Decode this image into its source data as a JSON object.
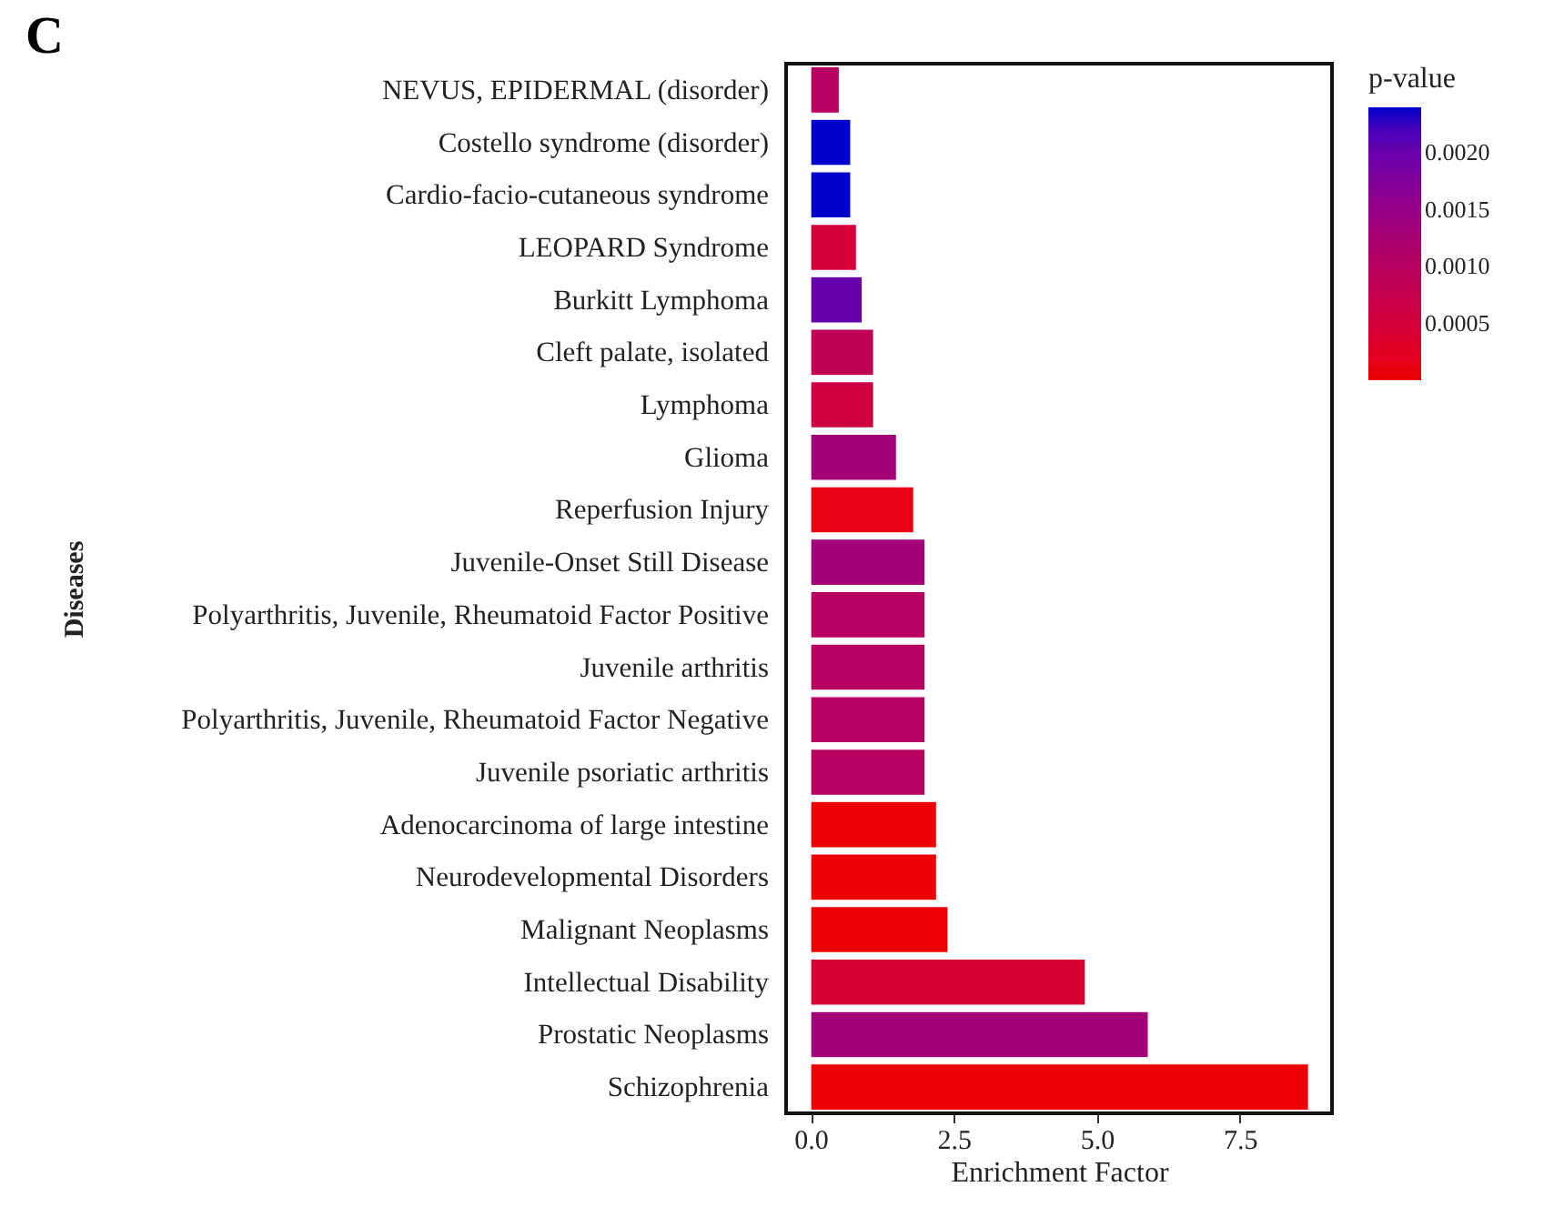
{
  "chart_data": {
    "type": "bar",
    "orientation": "horizontal",
    "xlabel": "Enrichment Factor",
    "ylabel": "Diseases",
    "legend_title": "p-value",
    "annotations": [
      "C"
    ],
    "categories": [
      "NEVUS, EPIDERMAL (disorder)",
      "Costello syndrome (disorder)",
      "Cardio-facio-cutaneous syndrome",
      "LEOPARD Syndrome",
      "Burkitt Lymphoma",
      "Cleft palate, isolated",
      "Lymphoma",
      "Glioma",
      "Reperfusion Injury",
      "Juvenile-Onset Still Disease",
      "Polyarthritis, Juvenile, Rheumatoid Factor Positive",
      "Juvenile arthritis",
      "Polyarthritis, Juvenile, Rheumatoid Factor Negative",
      "Juvenile psoriatic arthritis",
      "Adenocarcinoma of large intestine",
      "Neurodevelopmental Disorders",
      "Malignant Neoplasms",
      "Intellectual Disability",
      "Prostatic Neoplasms",
      "Schizophrenia"
    ],
    "values": [
      0.5,
      0.7,
      0.7,
      0.8,
      0.9,
      1.1,
      1.1,
      1.5,
      1.8,
      2.0,
      2.0,
      2.0,
      2.0,
      2.0,
      2.2,
      2.2,
      2.4,
      4.8,
      5.9,
      8.7
    ],
    "cvalues": [
      0.001,
      0.0024,
      0.0024,
      0.0005,
      0.002,
      0.00085,
      0.0006,
      0.0013,
      0.0001,
      0.0013,
      0.001,
      0.001,
      0.001,
      0.001,
      1e-05,
      1e-05,
      1e-05,
      0.0004,
      0.0013,
      1e-05
    ],
    "clim": [
      0,
      0.0024
    ],
    "cticks": [
      {
        "value": 0.0005,
        "label": "0.0005"
      },
      {
        "value": 0.001,
        "label": "0.0010"
      },
      {
        "value": 0.0015,
        "label": "0.0015"
      },
      {
        "value": 0.002,
        "label": "0.0020"
      }
    ],
    "xlim": [
      -0.43,
      9.11
    ],
    "xticks": [
      {
        "value": 0,
        "label": "0.0"
      },
      2.5,
      {
        "value": 5,
        "label": "5.0"
      },
      7.5
    ],
    "grid": false
  }
}
